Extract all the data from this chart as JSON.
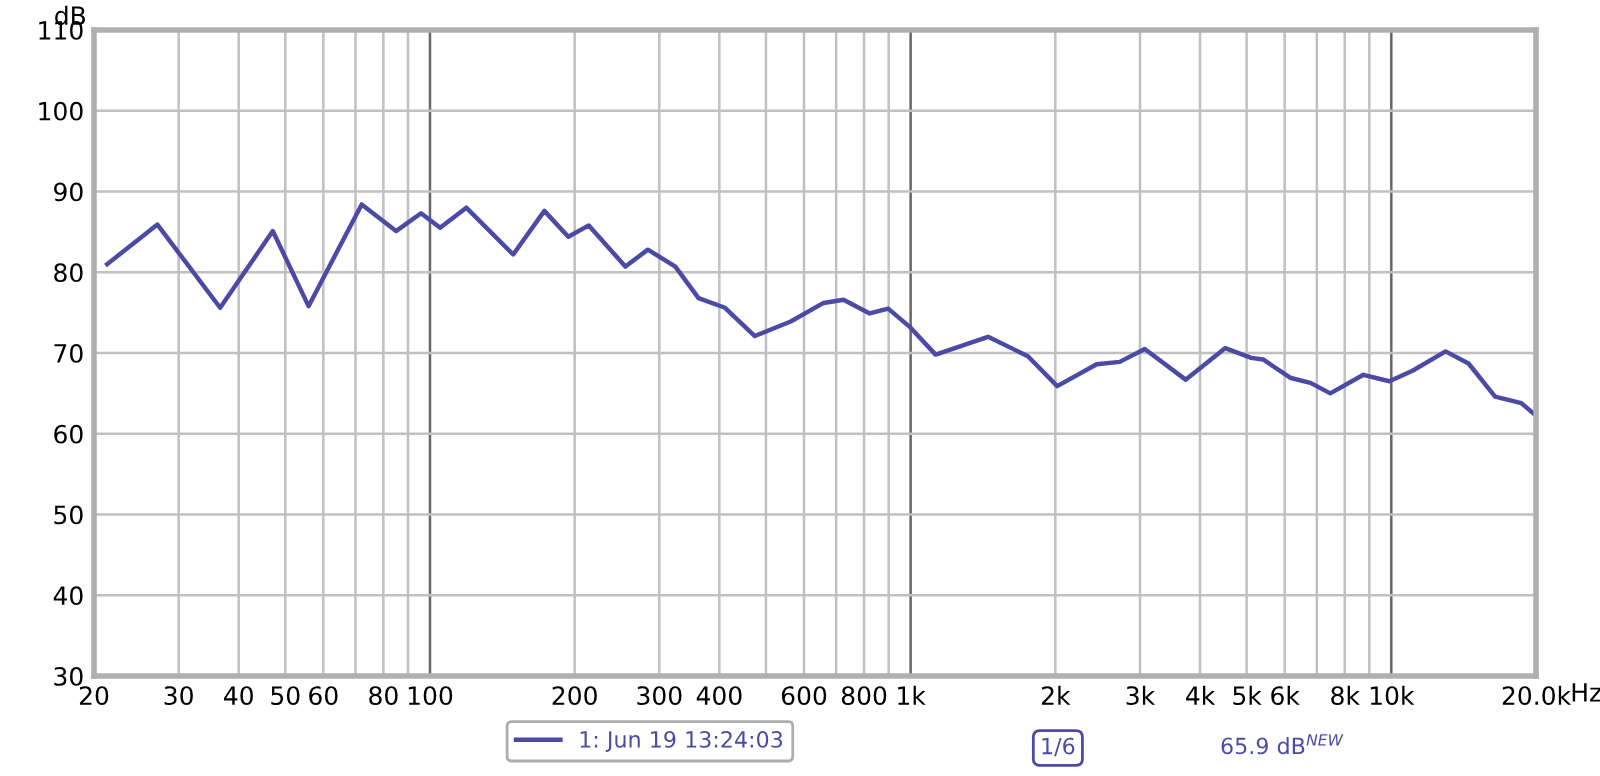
{
  "chart_data": {
    "type": "line",
    "ylabel": "dB",
    "log": "x",
    "grid": true,
    "legend": "bottom",
    "marker": "none",
    "line_style": "solid",
    "xlim": [
      20,
      20000
    ],
    "ylim": [
      30,
      110
    ],
    "xticks": [
      20,
      30,
      40,
      50,
      60,
      {
        "value": 70,
        "label": null
      },
      80,
      {
        "value": 90,
        "label": null
      },
      100,
      200,
      300,
      400,
      {
        "value": 500,
        "label": null
      },
      600,
      {
        "value": 700,
        "label": null
      },
      800,
      {
        "value": 900,
        "label": null
      },
      {
        "value": 1000,
        "label": "1k"
      },
      {
        "value": 2000,
        "label": "2k"
      },
      {
        "value": 3000,
        "label": "3k"
      },
      {
        "value": 4000,
        "label": "4k"
      },
      {
        "value": 5000,
        "label": "5k"
      },
      {
        "value": 6000,
        "label": "6k"
      },
      {
        "value": 7000,
        "label": null
      },
      {
        "value": 8000,
        "label": "8k"
      },
      {
        "value": 9000,
        "label": null
      },
      {
        "value": 10000,
        "label": "10k"
      },
      {
        "value": 20000,
        "label": "20.0k"
      }
    ],
    "xlabel": "Hz",
    "yticks": [
      30,
      40,
      50,
      60,
      70,
      80,
      90,
      100,
      110
    ],
    "annotations": [
      "1/6",
      "65.9 dB$^{NEW}$"
    ],
    "series": [
      {
        "name": "1: Jun 19 13:24:03",
        "color": "#4b4ba6",
        "x": [
          21.3,
          27.1,
          36.6,
          47.1,
          55.9,
          72.1,
          85,
          95.8,
          105,
          119,
          149,
          173,
          194,
          214,
          255,
          284,
          324,
          362,
          411,
          474,
          563,
          659,
          725,
          822,
          898,
          993,
          1127,
          1449,
          1754,
          2018,
          2438,
          2723,
          3069,
          3733,
          4510,
          5114,
          5411,
          6180,
          6790,
          7466,
          8750,
          9910,
          11070,
          12970,
          14480,
          16440,
          18640,
          19860
        ],
        "values": [
          81.0,
          85.9,
          75.6,
          85.1,
          75.8,
          88.4,
          85.1,
          87.3,
          85.5,
          88.0,
          82.2,
          87.6,
          84.4,
          85.8,
          80.7,
          82.8,
          80.7,
          76.8,
          75.6,
          72.1,
          73.9,
          76.2,
          76.6,
          74.9,
          75.5,
          73.3,
          69.8,
          72.0,
          69.6,
          65.9,
          68.6,
          68.9,
          70.5,
          66.7,
          70.6,
          69.4,
          69.2,
          66.9,
          66.3,
          65.0,
          67.3,
          66.5,
          67.8,
          70.2,
          68.7,
          64.6,
          63.8,
          62.4
        ]
      }
    ]
  }
}
